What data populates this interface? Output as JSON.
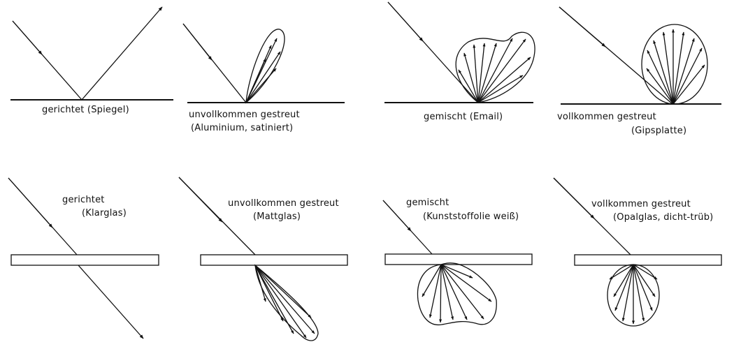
{
  "panels": {
    "reflection": [
      {
        "caption": "gerichtet (Spiegel)",
        "material": ""
      },
      {
        "caption": "unvollkommen gestreut",
        "material": "(Aluminium, satiniert)"
      },
      {
        "caption": "gemischt (Email)",
        "material": ""
      },
      {
        "caption": "vollkommen gestreut",
        "material": "(Gipsplatte)"
      }
    ],
    "transmission": [
      {
        "caption": "gerichtet",
        "material": "(Klarglas)"
      },
      {
        "caption": "unvollkommen gestreut",
        "material": "(Mattglas)"
      },
      {
        "caption": "gemischt",
        "material": "(Kunststoffolie weiß)"
      },
      {
        "caption": "vollkommen gestreut",
        "material": "(Opalglas, dicht-trüb)"
      }
    ]
  },
  "colors": {
    "ink": "#111111",
    "background": "#ffffff"
  }
}
